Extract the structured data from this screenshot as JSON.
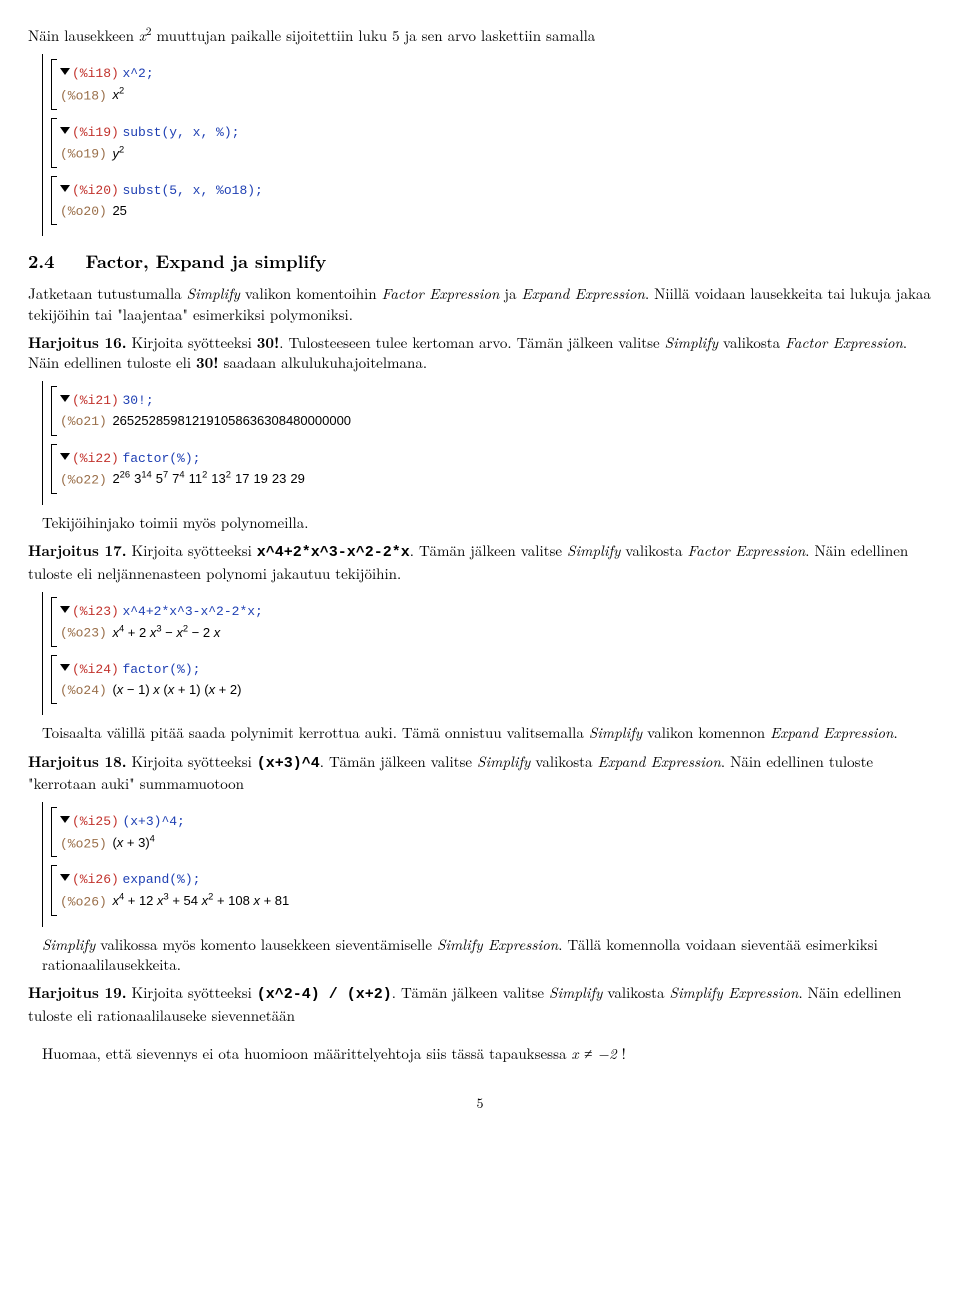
{
  "intro": {
    "text_pre": "Näin lausekkeen ",
    "var": "x",
    "text_post": " muuttujan paikalle sijoitettiin luku 5 ja sen arvo laskettiin samalla"
  },
  "cells_a": [
    {
      "in_lbl": "(%i18)",
      "in_code": "x^2;",
      "out_lbl": "(%o18)",
      "out_html": "<i>x</i><sup>2</sup>"
    },
    {
      "in_lbl": "(%i19)",
      "in_code": "subst(y, x, %);",
      "out_lbl": "(%o19)",
      "out_html": "<i>y</i><sup>2</sup>"
    },
    {
      "in_lbl": "(%i20)",
      "in_code": "subst(5, x, %o18);",
      "out_lbl": "(%o20)",
      "out_html": "25"
    }
  ],
  "section24": {
    "num": "2.4",
    "title": "Factor, Expand ja simplify"
  },
  "p24a": "Jatketaan tutustumalla ",
  "p24b": " valikon komentoihin ",
  "p24c": " ja ",
  "p24d": ". Niillä voidaan lausekkeita tai lukuja jakaa tekijöihin tai \"laajentaa\" esimerkiksi polymoniksi.",
  "simplify": "Simplify",
  "factorexp": "Factor Expression",
  "expandexp": "Expand Expression",
  "simlify": "Simlify Expression",
  "simplifyexp": "Simplify Expression",
  "h16": {
    "label": "Harjoitus 16.",
    "a": " Kirjoita syötteeksi ",
    "code": "30!",
    "b": ". Tulosteeseen tulee kertoman arvo. Tämän jälkeen valitse ",
    "c": " valikosta ",
    "d": ". Näin edellinen tuloste eli ",
    "num": "30!",
    "e": " saadaan alkulukuhajoitelmana."
  },
  "cells_b": [
    {
      "in_lbl": "(%i21)",
      "in_code": "30!;",
      "out_lbl": "(%o21)",
      "out_html": "265252859812191058636308480000000"
    },
    {
      "in_lbl": "(%i22)",
      "in_code": "factor(%);",
      "out_lbl": "(%o22)",
      "out_html": "2<sup>26</sup><span class=\"sp\"></span>3<sup>14</sup><span class=\"sp\"></span>5<sup>7</sup><span class=\"sp\"></span>7<sup>4</sup><span class=\"sp\"></span>11<sup>2</sup><span class=\"sp\"></span>13<sup>2</sup><span class=\"sp\"></span>17<span class=\"sp\"></span>19<span class=\"sp\"></span>23<span class=\"sp\"></span>29"
    }
  ],
  "p_tek": "Tekijöihinjako toimii myös polynomeilla.",
  "h17": {
    "label": "Harjoitus 17.",
    "a": " Kirjoita syötteeksi ",
    "code": "x^4+2*x^3-x^2-2*x",
    "b": ". Tämän jälkeen valitse ",
    "c": " valikosta ",
    "d": ". Näin edellinen tuloste eli neljännenasteen polynomi jakautuu tekijöihin."
  },
  "cells_c": [
    {
      "in_lbl": "(%i23)",
      "in_code": "x^4+2*x^3-x^2-2*x;",
      "out_lbl": "(%o23)",
      "out_html": "<i>x</i><sup>4</sup> + 2 <i>x</i><sup>3</sup> − <i>x</i><sup>2</sup> − 2 <i>x</i>"
    },
    {
      "in_lbl": "(%i24)",
      "in_code": "factor(%);",
      "out_lbl": "(%o24)",
      "out_html": "(<i>x</i> − 1) <i>x</i> (<i>x</i> + 1) (<i>x</i> + 2)"
    }
  ],
  "p_toisa": {
    "a": "Toisaalta välillä pitää saada polynimit kerrottua auki. Tämä onnistuu valitsemalla ",
    "b": " valikon komennon "
  },
  "h18": {
    "label": "Harjoitus 18.",
    "a": " Kirjoita syötteeksi ",
    "code": "(x+3)^4",
    "b": ". Tämän jälkeen valitse ",
    "c": " valikosta ",
    "d": ". Näin edellinen tuloste \"kerrotaan auki\" summamuotoon"
  },
  "cells_d": [
    {
      "in_lbl": "(%i25)",
      "in_code": "(x+3)^4;",
      "out_lbl": "(%o25)",
      "out_html": "(<i>x</i> + 3)<sup>4</sup>"
    },
    {
      "in_lbl": "(%i26)",
      "in_code": "expand(%);",
      "out_lbl": "(%o26)",
      "out_html": "<i>x</i><sup>4</sup> + 12 <i>x</i><sup>3</sup> + 54 <i>x</i><sup>2</sup> + 108 <i>x</i> + 81"
    }
  ],
  "p_simv": {
    "a": " valikossa myös komento lausekkeen sieventämiselle ",
    "b": ". Tällä komennolla voidaan sieventää esimerkiksi rationaalilausekkeita."
  },
  "h19": {
    "label": "Harjoitus 19.",
    "a": " Kirjoita syötteeksi ",
    "code": "(x^2-4) / (x+2)",
    "b": ". Tämän jälkeen valitse ",
    "c": " valikosta ",
    "d": ". Näin edellinen tuloste eli rationaalilauseke sievennetään"
  },
  "p_huom": {
    "a": "Huomaa, että sievennys ei ota huomioon määrittelyehtoja siis tässä tapauksessa ",
    "eq": "x ≠ −2",
    "b": " !"
  },
  "pagenum": "5",
  "colors": {
    "label_in": "#c2332d",
    "label_out": "#9a6f4a",
    "code_in": "#1e3fb3",
    "text": "#000000",
    "bg": "#ffffff"
  }
}
